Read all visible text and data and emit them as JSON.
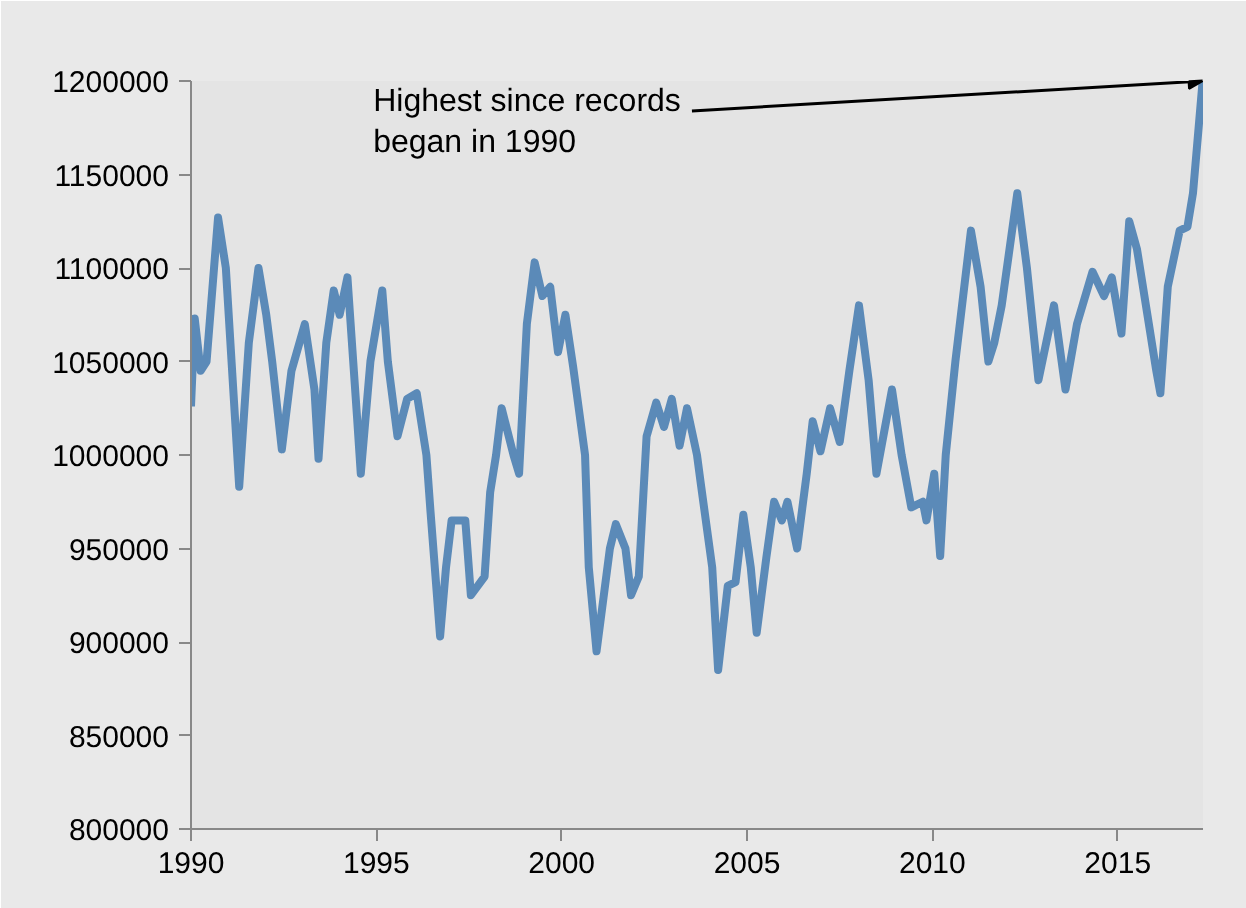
{
  "chart_data": {
    "type": "line",
    "x": [
      1990.0,
      1990.1,
      1990.26,
      1990.42,
      1990.73,
      1990.94,
      1991.3,
      1991.56,
      1991.82,
      1992.03,
      1992.19,
      1992.45,
      1992.71,
      1993.07,
      1993.33,
      1993.44,
      1993.65,
      1993.85,
      1994.01,
      1994.22,
      1994.48,
      1994.58,
      1994.84,
      1995.16,
      1995.31,
      1995.57,
      1995.83,
      1996.09,
      1996.35,
      1996.46,
      1996.72,
      1996.88,
      1997.03,
      1997.4,
      1997.55,
      1997.92,
      1998.07,
      1998.23,
      1998.38,
      1998.7,
      1998.85,
      1999.06,
      1999.27,
      1999.48,
      1999.69,
      1999.9,
      2000.1,
      2000.31,
      2000.63,
      2000.73,
      2000.94,
      2001.3,
      2001.46,
      2001.72,
      2001.87,
      2002.08,
      2002.29,
      2002.55,
      2002.76,
      2002.97,
      2003.18,
      2003.38,
      2003.65,
      2003.75,
      2004.06,
      2004.22,
      2004.48,
      2004.69,
      2004.9,
      2005.1,
      2005.26,
      2005.52,
      2005.73,
      2005.94,
      2006.09,
      2006.35,
      2006.61,
      2006.77,
      2006.98,
      2007.24,
      2007.5,
      2007.76,
      2008.02,
      2008.28,
      2008.49,
      2008.91,
      2009.17,
      2009.43,
      2009.74,
      2009.84,
      2010.05,
      2010.21,
      2010.36,
      2010.62,
      2011.04,
      2011.3,
      2011.51,
      2011.67,
      2011.87,
      2012.29,
      2012.55,
      2012.86,
      2013.28,
      2013.59,
      2013.9,
      2014.32,
      2014.63,
      2014.84,
      2015.1,
      2015.31,
      2015.52,
      2016.04,
      2016.15,
      2016.35,
      2016.67,
      2016.88,
      2017.03,
      2017.29
    ],
    "series": [
      {
        "color": "#5b8ab8",
        "values": [
          1026000,
          1073000,
          1045000,
          1050000,
          1127000,
          1100000,
          983000,
          1060000,
          1100000,
          1075000,
          1050000,
          1003000,
          1045000,
          1070000,
          1035000,
          998000,
          1060000,
          1088000,
          1075000,
          1095000,
          1020000,
          990000,
          1050000,
          1088000,
          1050000,
          1010000,
          1030000,
          1033000,
          1000000,
          970000,
          903000,
          940000,
          965000,
          965000,
          925000,
          935000,
          980000,
          1000000,
          1025000,
          1000000,
          990000,
          1070000,
          1103000,
          1085000,
          1090000,
          1055000,
          1075000,
          1047000,
          1000000,
          940000,
          895000,
          950000,
          963000,
          950000,
          925000,
          935000,
          1010000,
          1028000,
          1015000,
          1030000,
          1005000,
          1025000,
          1000000,
          985000,
          940000,
          885000,
          930000,
          932000,
          968000,
          940000,
          905000,
          945000,
          975000,
          965000,
          975000,
          950000,
          990000,
          1018000,
          1002000,
          1025000,
          1007000,
          1045000,
          1080000,
          1040000,
          990000,
          1035000,
          1000000,
          972000,
          975000,
          965000,
          990000,
          946000,
          1000000,
          1050000,
          1120000,
          1090000,
          1050000,
          1060000,
          1080000,
          1140000,
          1100000,
          1040000,
          1080000,
          1035000,
          1070000,
          1098000,
          1085000,
          1095000,
          1065000,
          1125000,
          1110000,
          1045000,
          1033000,
          1090000,
          1120000,
          1122000,
          1140000,
          1200000
        ]
      }
    ],
    "xlim": [
      1990,
      2017.3
    ],
    "xticks": [
      1990,
      1995,
      2000,
      2005,
      2010,
      2015
    ],
    "ylim": [
      800000,
      1200000
    ],
    "yticks": [
      800000,
      850000,
      900000,
      950000,
      1000000,
      1050000,
      1100000,
      1150000,
      1200000
    ],
    "marker": "none",
    "line_style": "solid",
    "annotations": [
      {
        "text": "Highest since records\nbegan in 1990",
        "x": 2017.29,
        "y": 1200000
      }
    ]
  }
}
